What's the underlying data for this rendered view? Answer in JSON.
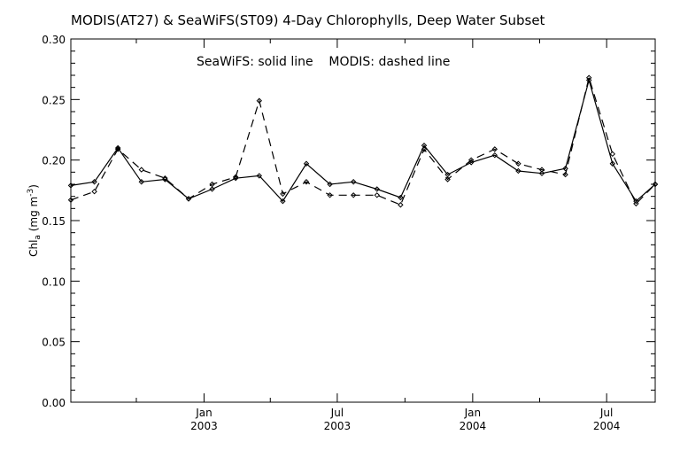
{
  "chart_data": {
    "type": "line",
    "title": "MODIS(AT27) & SeaWiFS(ST09) 4-Day Chlorophylls, Deep Water Subset",
    "annotation": "SeaWiFS: solid line    MODIS: dashed line",
    "ylabel": {
      "base": "Chl",
      "sub": "a",
      "mid": " (mg m",
      "sup": "-3",
      "end": ")"
    },
    "xlabel": "",
    "ylim": [
      0.0,
      0.3
    ],
    "xlim": [
      "2002-07-04",
      "2004-09-05"
    ],
    "yticks": [
      "0.00",
      "0.05",
      "0.10",
      "0.15",
      "0.20",
      "0.25",
      "0.30"
    ],
    "xticks": [
      {
        "date": "2003-01-01",
        "line1": "Jan",
        "line2": "2003"
      },
      {
        "date": "2003-07-01",
        "line1": "Jul",
        "line2": "2003"
      },
      {
        "date": "2004-01-01",
        "line1": "Jan",
        "line2": "2004"
      },
      {
        "date": "2004-07-01",
        "line1": "Jul",
        "line2": "2004"
      }
    ],
    "grid": false,
    "series": [
      {
        "name": "SeaWiFS",
        "style": "solid",
        "color": "#000000",
        "x": [
          "2002-07-04",
          "2002-08-05",
          "2002-09-06",
          "2002-10-08",
          "2002-11-09",
          "2002-12-11",
          "2003-01-12",
          "2003-02-13",
          "2003-03-17",
          "2003-04-18",
          "2003-05-20",
          "2003-06-21",
          "2003-07-23",
          "2003-08-24",
          "2003-09-25",
          "2003-10-27",
          "2003-11-28",
          "2003-12-30",
          "2004-01-31",
          "2004-03-03",
          "2004-04-04",
          "2004-05-06",
          "2004-06-07",
          "2004-07-09",
          "2004-08-10",
          "2004-09-05"
        ],
        "y": [
          0.179,
          0.182,
          0.21,
          0.182,
          0.184,
          0.168,
          0.176,
          0.185,
          0.187,
          0.166,
          0.197,
          0.18,
          0.182,
          0.176,
          0.169,
          0.212,
          0.188,
          0.198,
          0.204,
          0.191,
          0.189,
          0.193,
          0.266,
          0.197,
          0.166,
          0.18
        ]
      },
      {
        "name": "MODIS",
        "style": "dashed",
        "color": "#000000",
        "x": [
          "2002-07-04",
          "2002-08-05",
          "2002-09-06",
          "2002-10-08",
          "2002-11-09",
          "2002-12-11",
          "2003-01-12",
          "2003-02-13",
          "2003-03-17",
          "2003-04-18",
          "2003-05-20",
          "2003-06-21",
          "2003-07-23",
          "2003-08-24",
          "2003-09-25",
          "2003-10-27",
          "2003-11-28",
          "2003-12-30",
          "2004-01-31",
          "2004-03-03",
          "2004-04-04",
          "2004-05-06",
          "2004-06-07",
          "2004-07-09",
          "2004-08-10",
          "2004-09-05"
        ],
        "y": [
          0.167,
          0.174,
          0.209,
          0.192,
          0.185,
          0.168,
          0.18,
          0.186,
          0.249,
          0.172,
          0.182,
          0.171,
          0.171,
          0.171,
          0.163,
          0.209,
          0.184,
          0.2,
          0.209,
          0.197,
          0.192,
          0.188,
          0.268,
          0.205,
          0.164,
          0.18
        ]
      }
    ]
  }
}
